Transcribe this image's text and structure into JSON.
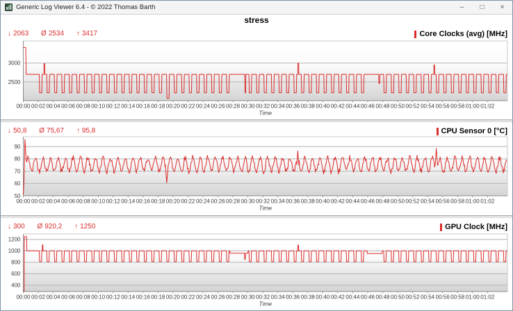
{
  "titlebar": {
    "title": "Generic Log Viewer 6.4 - © 2022 Thomas Barth",
    "controls": {
      "minimize": "–",
      "maximize": "□",
      "close": "×"
    }
  },
  "header": {
    "title": "stress"
  },
  "symbols": {
    "min": "↓",
    "avg": "Ø",
    "max": "↑"
  },
  "colors": {
    "accent": "#dc2b2b",
    "grid": "#b4b4b4",
    "axis": "#8a8a8a",
    "plot_border_light": "#c9c9c9",
    "plot_bg_top": "#ffffff",
    "plot_bg_bottom": "#d4d4d4",
    "tick_text": "#3c3c3c"
  },
  "time_axis": {
    "xlabel": "Time",
    "total_seconds": 3880,
    "tick_step_seconds": 120,
    "tick_labels": [
      "00:00",
      "00:02",
      "00:04",
      "00:06",
      "00:08",
      "00:10",
      "00:12",
      "00:14",
      "00:16",
      "00:18",
      "00:20",
      "00:22",
      "00:24",
      "00:26",
      "00:28",
      "00:30",
      "00:32",
      "00:34",
      "00:36",
      "00:38",
      "00:40",
      "00:42",
      "00:44",
      "00:46",
      "00:48",
      "00:50",
      "00:52",
      "00:54",
      "00:56",
      "00:58",
      "01:00",
      "01:02"
    ]
  },
  "chart_data": [
    {
      "type": "line",
      "label": "Core Clocks (avg) [MHz]",
      "stats": {
        "min": "2063",
        "avg": "2534",
        "max": "3417"
      },
      "ylim": [
        2000,
        3590
      ],
      "yticks": [
        2500,
        3000
      ],
      "series_spec": {
        "kind": "square",
        "start": [
          [
            0,
            3417
          ],
          [
            20,
            3417
          ],
          [
            23,
            2700
          ]
        ],
        "t_first": 128,
        "period": 60,
        "high": 2700,
        "low": 2210,
        "fall": 3,
        "low_len": 17,
        "rise": 3,
        "end": 3880,
        "spikes": [
          {
            "t": 165,
            "peak": 2985,
            "len": 6
          },
          {
            "t": 2200,
            "peak": 3000,
            "len": 6
          },
          {
            "t": 3290,
            "peak": 2950,
            "len": 6
          }
        ],
        "low_overrides": [
          {
            "t": 1148,
            "low": 2065
          }
        ],
        "flats": [
          {
            "from": 1655,
            "to": 1800,
            "level": 2700,
            "dips": [
              {
                "t": 1775,
                "low": 2210,
                "fall": 2,
                "len": 5,
                "rise": 2
              }
            ]
          },
          {
            "from": 2755,
            "to": 2875,
            "level": 2700,
            "dips": [
              {
                "t": 2848,
                "low": 2455,
                "fall": 2,
                "len": 6,
                "rise": 2
              }
            ]
          }
        ]
      }
    },
    {
      "type": "line",
      "label": "CPU Sensor 0 [°C]",
      "stats": {
        "min": "50,8",
        "avg": "75,67",
        "max": "95,8"
      },
      "ylim": [
        50,
        98
      ],
      "yticks": [
        50,
        60,
        70,
        80,
        90
      ],
      "series_spec": {
        "kind": "noisy",
        "start": [
          [
            0,
            50.8
          ],
          [
            6,
            62
          ],
          [
            10,
            80
          ],
          [
            13,
            95.8
          ],
          [
            17,
            90
          ],
          [
            22,
            81
          ]
        ],
        "from": 26,
        "end": 3880,
        "step": 5,
        "base": 75.3,
        "amp": 5.6,
        "period": 60,
        "phase": 23,
        "noise": 2.2,
        "seed": 42,
        "clamp": [
          67,
          86
        ],
        "events": [
          {
            "t": 1150,
            "v": 60.5,
            "w": 12
          },
          {
            "t": 2200,
            "v": 86.5,
            "w": 8
          },
          {
            "t": 3310,
            "v": 88.5,
            "w": 9
          }
        ]
      }
    },
    {
      "type": "line",
      "label": "GPU Clock [MHz]",
      "stats": {
        "min": "300",
        "avg": "920,2",
        "max": "1250"
      },
      "ylim": [
        290,
        1295
      ],
      "yticks": [
        400,
        600,
        800,
        1000,
        1200
      ],
      "series_spec": {
        "kind": "square",
        "start": [
          [
            0,
            300
          ],
          [
            7,
            300
          ],
          [
            9,
            1250
          ],
          [
            26,
            1250
          ],
          [
            29,
            1000
          ]
        ],
        "t_first": 128,
        "period": 60,
        "high": 1000,
        "low": 812,
        "fall": 3,
        "low_len": 15,
        "rise": 3,
        "end": 3880,
        "spikes": [
          {
            "t": 152,
            "peak": 1105,
            "len": 4
          },
          {
            "t": 2200,
            "peak": 1100,
            "len": 5
          }
        ],
        "low_overrides": [],
        "flats": [
          {
            "from": 1655,
            "to": 1800,
            "level": 958,
            "dips": [
              {
                "t": 1772,
                "low": 852,
                "fall": 2,
                "len": 5,
                "rise": 2
              }
            ]
          },
          {
            "from": 2755,
            "to": 2875,
            "level": 952,
            "dips": []
          }
        ]
      }
    }
  ]
}
